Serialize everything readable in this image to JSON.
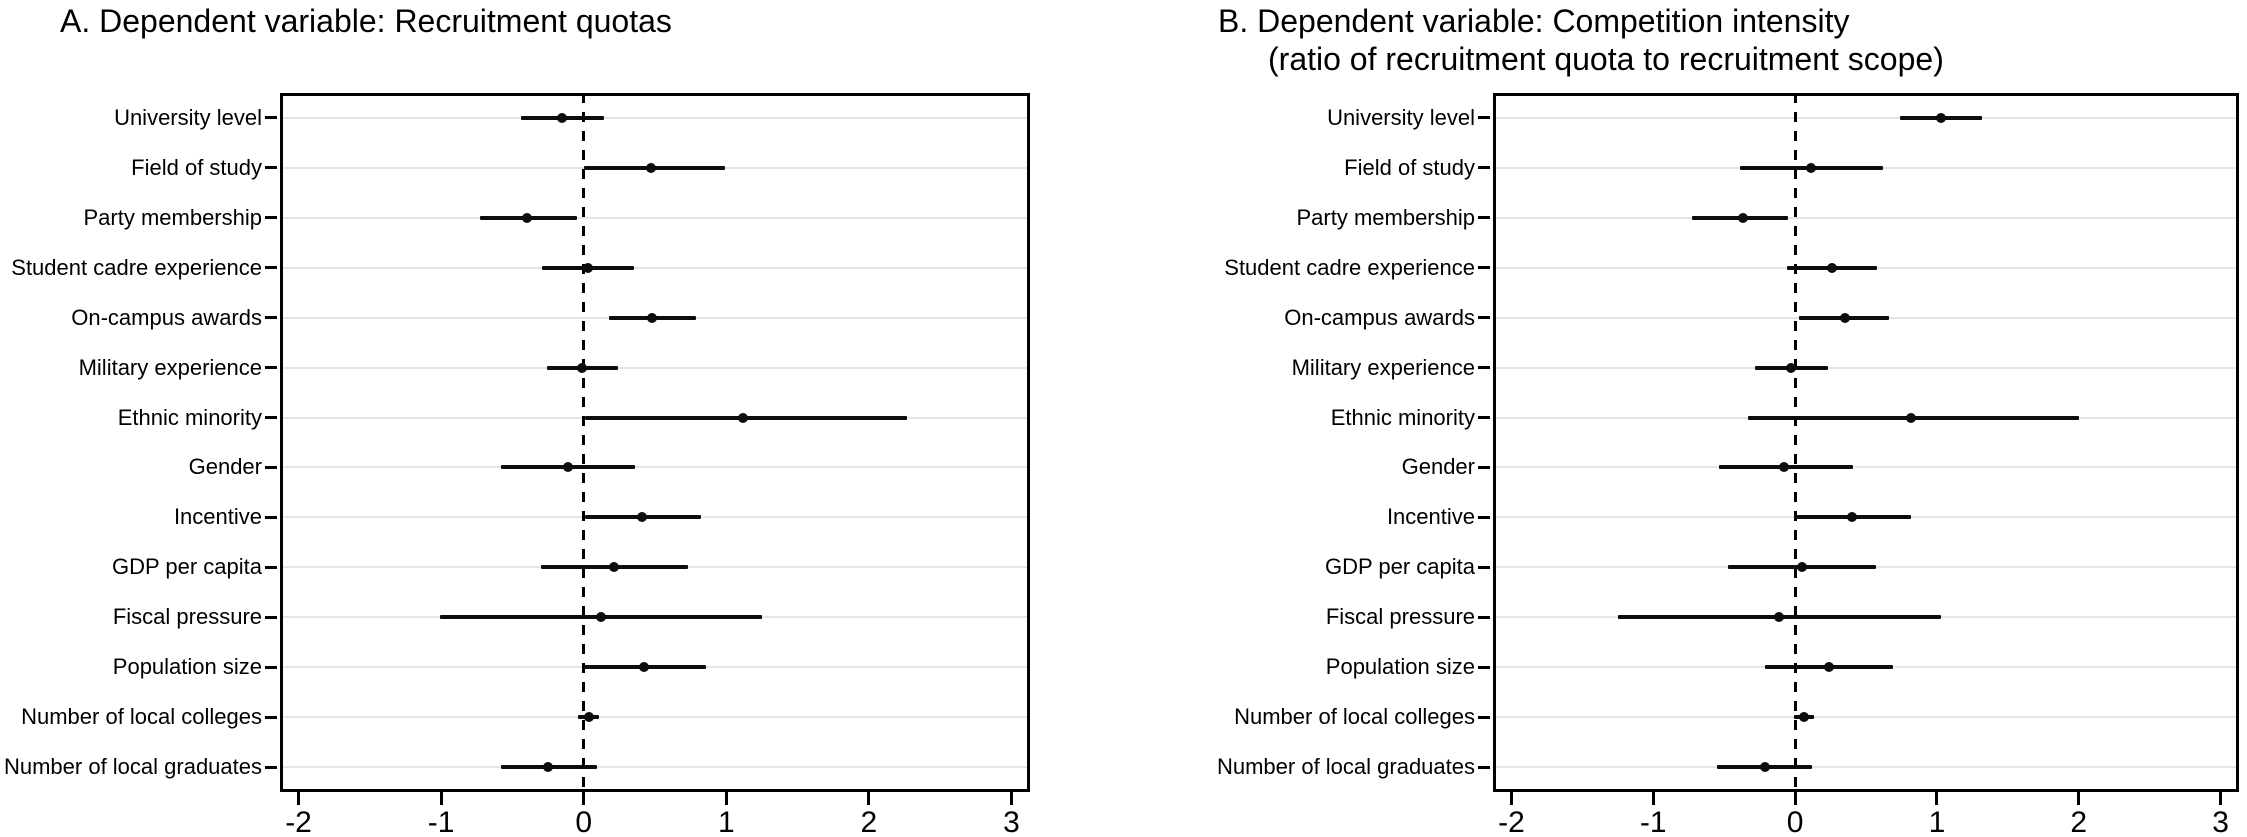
{
  "figure": {
    "background": "#ffffff"
  },
  "colors": {
    "marker": "#0d0d0d",
    "ci_line": "#0d0d0d",
    "grid_line": "#e5e5e5",
    "frame": "#000000",
    "refline": "#000000",
    "text": "#000000",
    "background": "#ffffff"
  },
  "chart_data": [
    {
      "type": "scatter",
      "variant": "horizontal-coefficient-plot-with-ci",
      "title": "A. Dependent variable: Recruitment quotas",
      "subtitle": "",
      "xlabel": "",
      "ylabel": "",
      "legend": "none",
      "grid": "horizontal-light",
      "refline_x": 0,
      "refline_style": "dashed",
      "xlim": [
        -2.13,
        3.13
      ],
      "xticks": [
        -2,
        -1,
        0,
        1,
        2,
        3
      ],
      "xtick_labels": [
        "-2",
        "-1",
        "0",
        "1",
        "2",
        "3"
      ],
      "categories": [
        "University level",
        "Field of study",
        "Party membership",
        "Student cadre experience",
        "On-campus awards",
        "Military experience",
        "Ethnic minority",
        "Gender",
        "Incentive",
        "GDP per capita",
        "Fiscal pressure",
        "Population size",
        "Number of local colleges",
        "Number of local graduates"
      ],
      "series": [
        {
          "name": "coefficient",
          "estimates": [
            -0.15,
            0.47,
            -0.4,
            0.03,
            0.48,
            -0.01,
            1.12,
            -0.11,
            0.41,
            0.21,
            0.12,
            0.42,
            0.04,
            -0.25
          ],
          "ci_low": [
            -0.44,
            0.0,
            -0.73,
            -0.29,
            0.18,
            -0.26,
            0.01,
            -0.58,
            0.01,
            -0.3,
            -1.01,
            0.0,
            -0.04,
            -0.58
          ],
          "ci_high": [
            0.14,
            0.99,
            -0.05,
            0.35,
            0.79,
            0.24,
            2.27,
            0.36,
            0.82,
            0.73,
            1.25,
            0.86,
            0.11,
            0.09
          ]
        }
      ]
    },
    {
      "type": "scatter",
      "variant": "horizontal-coefficient-plot-with-ci",
      "title": "B. Dependent variable: Competition intensity",
      "subtitle": "(ratio of recruitment quota to recruitment scope)",
      "xlabel": "",
      "ylabel": "",
      "legend": "none",
      "grid": "horizontal-light",
      "refline_x": 0,
      "refline_style": "dashed",
      "xlim": [
        -2.13,
        3.13
      ],
      "xticks": [
        -2,
        -1,
        0,
        1,
        2,
        3
      ],
      "xtick_labels": [
        "-2",
        "-1",
        "0",
        "1",
        "2",
        "3"
      ],
      "categories": [
        "University level",
        "Field of study",
        "Party membership",
        "Student cadre experience",
        "On-campus awards",
        "Military experience",
        "Ethnic minority",
        "Gender",
        "Incentive",
        "GDP per capita",
        "Fiscal pressure",
        "Population size",
        "Number of local colleges",
        "Number of local graduates"
      ],
      "series": [
        {
          "name": "coefficient",
          "estimates": [
            1.03,
            0.11,
            -0.37,
            0.26,
            0.35,
            -0.03,
            0.82,
            -0.08,
            0.4,
            0.05,
            -0.11,
            0.24,
            0.06,
            -0.21
          ],
          "ci_low": [
            0.74,
            -0.39,
            -0.73,
            -0.06,
            0.03,
            -0.28,
            -0.33,
            -0.54,
            -0.01,
            -0.47,
            -1.25,
            -0.21,
            -0.01,
            -0.55
          ],
          "ci_high": [
            1.32,
            0.62,
            -0.05,
            0.58,
            0.66,
            0.23,
            2.0,
            0.41,
            0.82,
            0.57,
            1.03,
            0.69,
            0.13,
            0.12
          ]
        }
      ]
    }
  ]
}
